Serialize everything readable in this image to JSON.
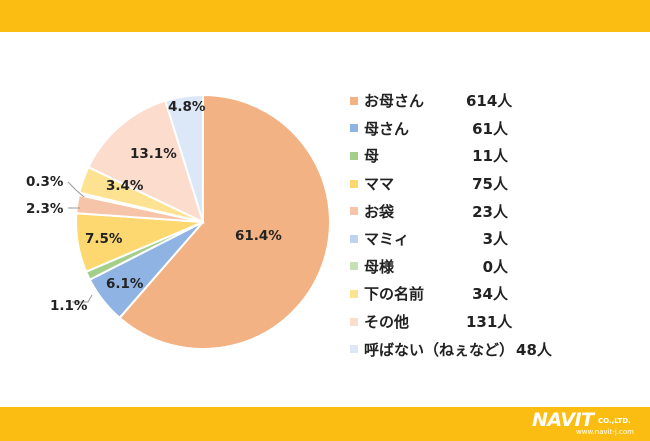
{
  "chart_data": {
    "type": "pie",
    "categories": [
      "お母さん",
      "母さん",
      "母",
      "ママ",
      "お袋",
      "マミィ",
      "母様",
      "下の名前",
      "その他",
      "呼ばない（ねぇなど）"
    ],
    "values": [
      614,
      61,
      11,
      75,
      23,
      3,
      0,
      34,
      131,
      48
    ],
    "count_labels": [
      "614人",
      "61人",
      "11人",
      "75人",
      "23人",
      "3人",
      "0人",
      "34人",
      "131人",
      "48人"
    ],
    "percent_labels": [
      "61.4%",
      "6.1%",
      "1.1%",
      "7.5%",
      "2.3%",
      "0.3%",
      "",
      "3.4%",
      "13.1%",
      "4.8%"
    ],
    "colors": [
      "#f2b283",
      "#8fb4e3",
      "#a4cf8b",
      "#fdd870",
      "#f6c4a8",
      "#bdd3ef",
      "#c5e0b4",
      "#fde391",
      "#fbdccd",
      "#dce8f7"
    ],
    "legend_position": "right"
  },
  "logo": {
    "name": "NAVIT",
    "suffix": "CO.,LTD.",
    "url": "www.navit-j.com"
  }
}
